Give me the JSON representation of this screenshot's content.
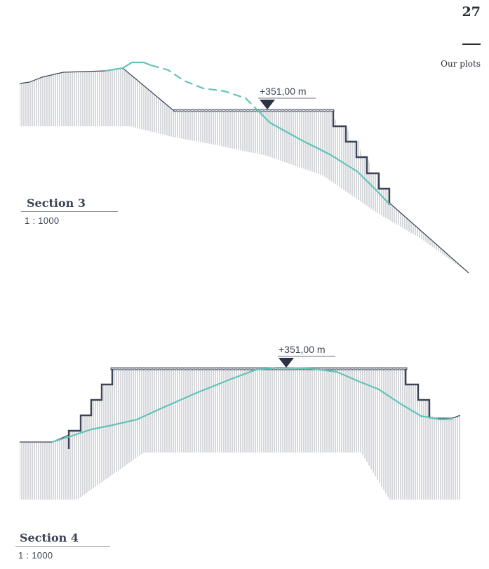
{
  "page": {
    "number": "27",
    "header": "Our plots"
  },
  "sections": [
    {
      "title": "Section 3",
      "scale": "1 : 1000",
      "elevation_label": "+351,00 m"
    },
    {
      "title": "Section 4",
      "scale": "1 : 1000",
      "elevation_label": "+351,00 m"
    }
  ],
  "colors": {
    "terrain_hatch": "#9a9ea6",
    "structure": "#3b4456",
    "water_line": "#62c4b8",
    "text": "#3c4455"
  },
  "icons": {
    "elevation_marker": "triangle-down-icon"
  }
}
